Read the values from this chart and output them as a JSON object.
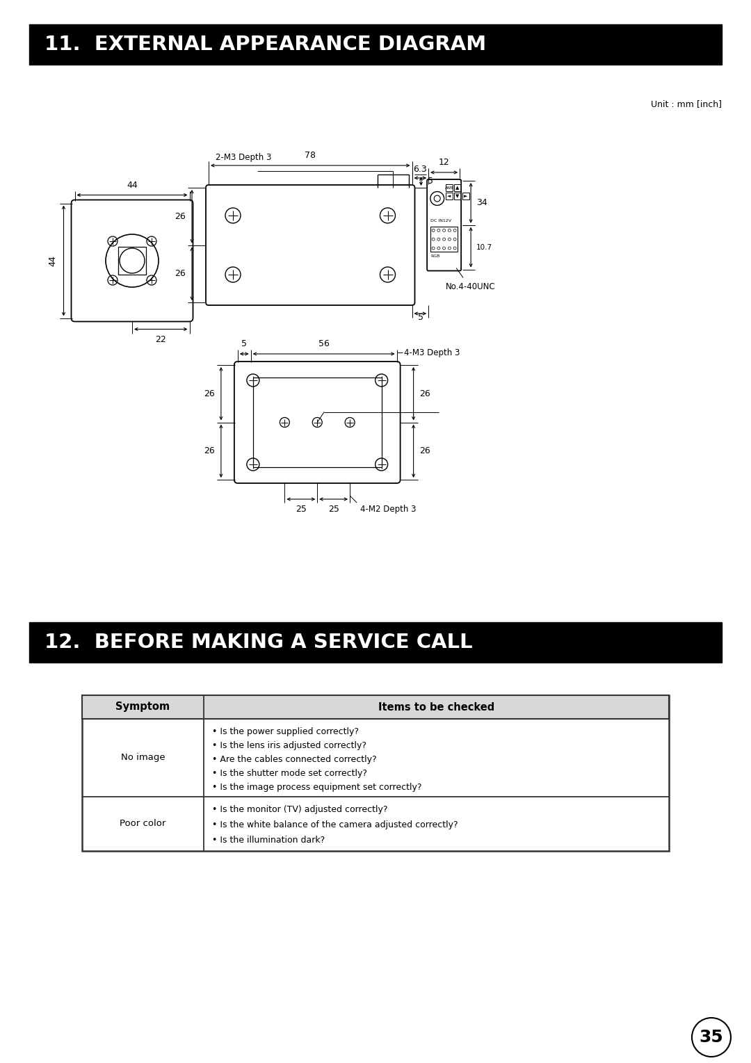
{
  "title1": "11.  EXTERNAL APPEARANCE DIAGRAM",
  "title2": "12.  BEFORE MAKING A SERVICE CALL",
  "unit_label": "Unit : mm [inch]",
  "page_number": "35",
  "bg_color": "#ffffff",
  "header_bg": "#000000",
  "header_fg": "#ffffff",
  "table_header_row": [
    "Symptom",
    "Items to be checked"
  ],
  "table_rows": [
    {
      "symptom": "No image",
      "items": [
        "• Is the power supplied correctly?",
        "• Is the lens iris adjusted correctly?",
        "• Are the cables connected correctly?",
        "• Is the shutter mode set correctly?",
        "• Is the image process equipment set correctly?"
      ]
    },
    {
      "symptom": "Poor color",
      "items": [
        "• Is the monitor (TV) adjusted correctly?",
        "• Is the white balance of the camera adjusted correctly?",
        "• Is the illumination dark?"
      ]
    }
  ]
}
